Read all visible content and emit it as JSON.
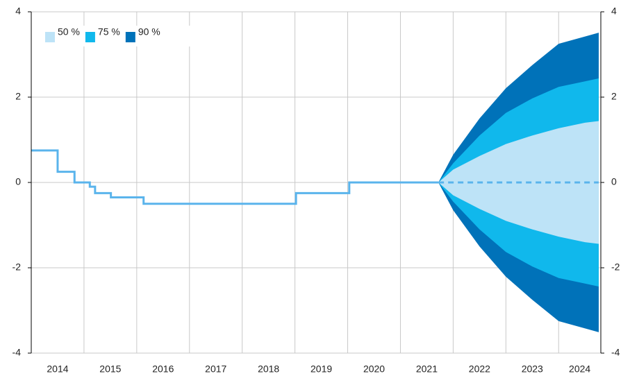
{
  "chart_data": {
    "type": "fan",
    "xlim": [
      2014.0,
      2024.8
    ],
    "ylim": [
      -4,
      4
    ],
    "yticks": [
      -4,
      -2,
      0,
      2,
      4
    ],
    "xticks": [
      {
        "value": 2014.5,
        "label": "2014"
      },
      {
        "value": 2015.5,
        "label": "2015"
      },
      {
        "value": 2016.5,
        "label": "2016"
      },
      {
        "value": 2017.5,
        "label": "2017"
      },
      {
        "value": 2018.5,
        "label": "2018"
      },
      {
        "value": 2019.5,
        "label": "2019"
      },
      {
        "value": 2020.5,
        "label": "2020"
      },
      {
        "value": 2021.5,
        "label": "2021"
      },
      {
        "value": 2022.5,
        "label": "2022"
      },
      {
        "value": 2023.5,
        "label": "2023"
      },
      {
        "value": 2024.4,
        "label": "2024"
      }
    ],
    "xgrid": [
      2015,
      2016,
      2017,
      2018,
      2019,
      2020,
      2021,
      2022,
      2023,
      2024
    ],
    "grid": true,
    "series": [
      {
        "color": "#5ab4ec",
        "dashed": false,
        "x": [
          2014.0,
          2014.5,
          2014.5,
          2014.82,
          2014.82,
          2015.11,
          2015.11,
          2015.21,
          2015.21,
          2015.51,
          2015.51,
          2016.13,
          2016.13,
          2019.02,
          2019.02,
          2020.03,
          2020.03,
          2021.72
        ],
        "values": [
          0.75,
          0.75,
          0.25,
          0.25,
          0,
          0,
          -0.1,
          -0.1,
          -0.25,
          -0.25,
          -0.35,
          -0.35,
          -0.5,
          -0.5,
          -0.25,
          -0.25,
          0,
          0
        ]
      },
      {
        "color": "#5ab4ec",
        "dashed": true,
        "x": [
          2021.72,
          2024.76
        ],
        "values": [
          0,
          0
        ]
      }
    ],
    "fan_x": [
      2021.72,
      2022.0,
      2022.5,
      2023.0,
      2023.5,
      2024.0,
      2024.5,
      2024.76
    ],
    "bands": [
      {
        "name": "50 %",
        "color": "#bde3f7",
        "upper": [
          0,
          0.3,
          0.62,
          0.9,
          1.1,
          1.27,
          1.4,
          1.44
        ],
        "lower": [
          0,
          -0.3,
          -0.62,
          -0.9,
          -1.1,
          -1.27,
          -1.4,
          -1.44
        ]
      },
      {
        "name": "75 %",
        "color": "#10b8ec",
        "upper": [
          0,
          0.45,
          1.1,
          1.63,
          1.97,
          2.24,
          2.37,
          2.44
        ],
        "lower": [
          0,
          -0.45,
          -1.1,
          -1.63,
          -1.97,
          -2.24,
          -2.37,
          -2.44
        ]
      },
      {
        "name": "90 %",
        "color": "#0072b9",
        "upper": [
          0,
          0.65,
          1.5,
          2.21,
          2.75,
          3.25,
          3.42,
          3.51
        ],
        "lower": [
          0,
          -0.65,
          -1.5,
          -2.21,
          -2.75,
          -3.25,
          -3.42,
          -3.51
        ]
      }
    ]
  }
}
